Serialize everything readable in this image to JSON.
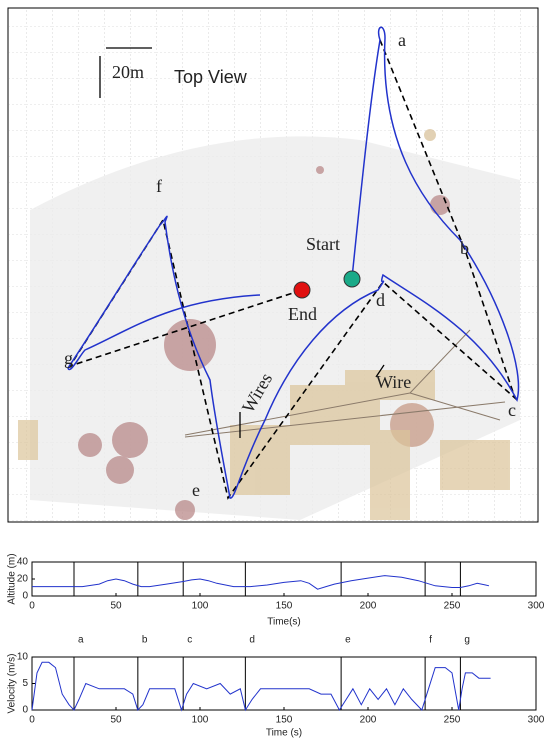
{
  "map": {
    "title": "Top View",
    "scale": "20m",
    "start": "Start",
    "end": "End",
    "wires": "Wires",
    "wire": "Wire",
    "waypoints": [
      "a",
      "b",
      "c",
      "d",
      "e",
      "f",
      "g"
    ]
  },
  "chart_data": [
    {
      "type": "line",
      "x_label": "Time(s)",
      "y_label": "Altitude (m)",
      "xlim": [
        0,
        300
      ],
      "xticks": [
        0,
        50,
        100,
        150,
        200,
        250,
        300
      ],
      "ylim": [
        0,
        40
      ],
      "yticks": [
        0,
        20,
        40
      ],
      "segment_markers": {
        "x": [
          25,
          63,
          90,
          127,
          184,
          234,
          255
        ],
        "labels": [
          "a",
          "b",
          "c",
          "d",
          "e",
          "f",
          "g"
        ]
      },
      "series": [
        {
          "color": "#2233cc",
          "x": [
            0,
            10,
            20,
            30,
            40,
            45,
            50,
            55,
            60,
            65,
            70,
            80,
            90,
            95,
            100,
            105,
            110,
            120,
            130,
            140,
            150,
            160,
            165,
            170,
            175,
            180,
            190,
            200,
            210,
            220,
            230,
            240,
            250,
            255,
            260,
            265,
            270,
            272
          ],
          "values": [
            11,
            11,
            11,
            11,
            14,
            18,
            20,
            18,
            14,
            11,
            11,
            14,
            17,
            19,
            20,
            18,
            15,
            11,
            11,
            13,
            16,
            18,
            15,
            8,
            11,
            14,
            18,
            21,
            24,
            22,
            18,
            12,
            10,
            10,
            12,
            15,
            13,
            12
          ]
        }
      ]
    },
    {
      "type": "line",
      "x_label": "Time (s)",
      "y_label": "Velocity (m/s)",
      "xlim": [
        0,
        300
      ],
      "xticks": [
        0,
        50,
        100,
        150,
        200,
        250,
        300
      ],
      "ylim": [
        0,
        10
      ],
      "yticks": [
        0,
        5,
        10
      ],
      "series": [
        {
          "color": "#2233cc",
          "x": [
            0,
            3,
            6,
            10,
            14,
            18,
            22,
            25,
            28,
            32,
            40,
            48,
            55,
            60,
            63,
            66,
            70,
            78,
            85,
            89,
            92,
            96,
            104,
            112,
            118,
            124,
            127,
            131,
            136,
            145,
            155,
            165,
            172,
            178,
            183,
            187,
            191,
            196,
            201,
            206,
            211,
            216,
            221,
            226,
            232,
            236,
            240,
            246,
            250,
            254,
            256,
            258,
            262,
            266,
            270,
            273
          ],
          "values": [
            0,
            7,
            9,
            9,
            8,
            3,
            1,
            0,
            2,
            5,
            4,
            4,
            4,
            3,
            0,
            1,
            4,
            4,
            4,
            0,
            3,
            5,
            4,
            5,
            3,
            4,
            0,
            2,
            4,
            4,
            4,
            4,
            3,
            3,
            0,
            2,
            4,
            1,
            4,
            2,
            4,
            1,
            4,
            2,
            0,
            4,
            8,
            8,
            7,
            0,
            4,
            7,
            7,
            6,
            6,
            6
          ]
        }
      ]
    }
  ]
}
